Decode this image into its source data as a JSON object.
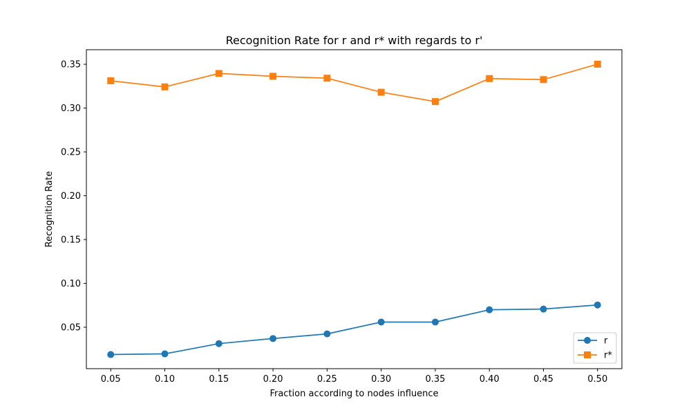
{
  "chart_data": {
    "type": "line",
    "title": "Recognition Rate for r and r* with regards to r'",
    "xlabel": "Fraction according to nodes influence",
    "ylabel": "Recognition Rate",
    "x": [
      0.05,
      0.1,
      0.15,
      0.2,
      0.25,
      0.3,
      0.35,
      0.4,
      0.45,
      0.5
    ],
    "x_tick_labels": [
      "0.05",
      "0.10",
      "0.15",
      "0.20",
      "0.25",
      "0.30",
      "0.35",
      "0.40",
      "0.45",
      "0.50"
    ],
    "y_ticks": [
      0.05,
      0.1,
      0.15,
      0.2,
      0.25,
      0.3,
      0.35
    ],
    "y_tick_labels": [
      "0.05",
      "0.10",
      "0.15",
      "0.20",
      "0.25",
      "0.30",
      "0.35"
    ],
    "xlim": [
      0.0275,
      0.5225
    ],
    "ylim": [
      0.0027,
      0.3666
    ],
    "grid": false,
    "legend_position": "lower-right",
    "series": [
      {
        "name": "r",
        "color": "#1f77b4",
        "marker": "circle",
        "values": [
          0.0188,
          0.0196,
          0.0313,
          0.0371,
          0.0424,
          0.0559,
          0.0559,
          0.0699,
          0.0707,
          0.0754
        ]
      },
      {
        "name": "r*",
        "color": "#ff7f0e",
        "marker": "square",
        "values": [
          0.3312,
          0.3242,
          0.3395,
          0.3363,
          0.3341,
          0.3181,
          0.3074,
          0.3337,
          0.3325,
          0.3501
        ]
      }
    ]
  }
}
